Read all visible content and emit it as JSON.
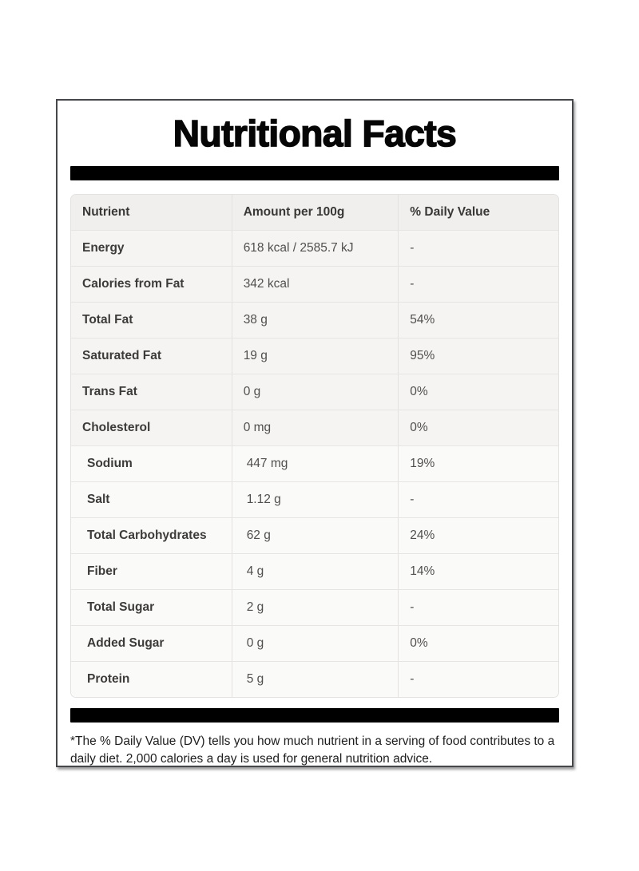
{
  "title": "Nutritional Facts",
  "table": {
    "columns": [
      "Nutrient",
      "Amount per 100g",
      "% Daily Value"
    ],
    "sections": [
      {
        "rows": [
          {
            "nutrient": "Energy",
            "amount": "618 kcal / 2585.7 kJ",
            "daily_value": "-"
          },
          {
            "nutrient": "Calories from Fat",
            "amount": "342 kcal",
            "daily_value": "-"
          },
          {
            "nutrient": "Total Fat",
            "amount": "38 g",
            "daily_value": "54%"
          },
          {
            "nutrient": "Saturated Fat",
            "amount": "19 g",
            "daily_value": "95%"
          },
          {
            "nutrient": "Trans Fat",
            "amount": "0 g",
            "daily_value": "0%"
          },
          {
            "nutrient": "Cholesterol",
            "amount": "0 mg",
            "daily_value": "0%"
          }
        ]
      },
      {
        "rows": [
          {
            "nutrient": "Sodium",
            "amount": "447 mg",
            "daily_value": "19%"
          },
          {
            "nutrient": "Salt",
            "amount": "1.12 g",
            "daily_value": "-"
          },
          {
            "nutrient": "Total Carbohydrates",
            "amount": "62 g",
            "daily_value": "24%"
          },
          {
            "nutrient": "Fiber",
            "amount": "4 g",
            "daily_value": "14%"
          },
          {
            "nutrient": "Total Sugar",
            "amount": "2 g",
            "daily_value": "-"
          },
          {
            "nutrient": "Added Sugar",
            "amount": "0 g",
            "daily_value": "0%"
          },
          {
            "nutrient": "Protein",
            "amount": "5 g",
            "daily_value": "-"
          }
        ]
      }
    ]
  },
  "footnote": "*The % Daily Value (DV) tells you how much nutrient in a serving of food contributes to a daily diet. 2,000 calories a day is used for general nutrition advice.",
  "colors": {
    "divider_bar": "#000000",
    "card_border": "#46474a",
    "table_header_bg": "#f0efed",
    "section1_row_bg": "#f5f4f2",
    "section2_row_bg": "#fafaf9",
    "table_border": "#e3e2e0",
    "label_text": "#3c3b39",
    "value_text": "#504f4d",
    "title_text": "#060606"
  }
}
